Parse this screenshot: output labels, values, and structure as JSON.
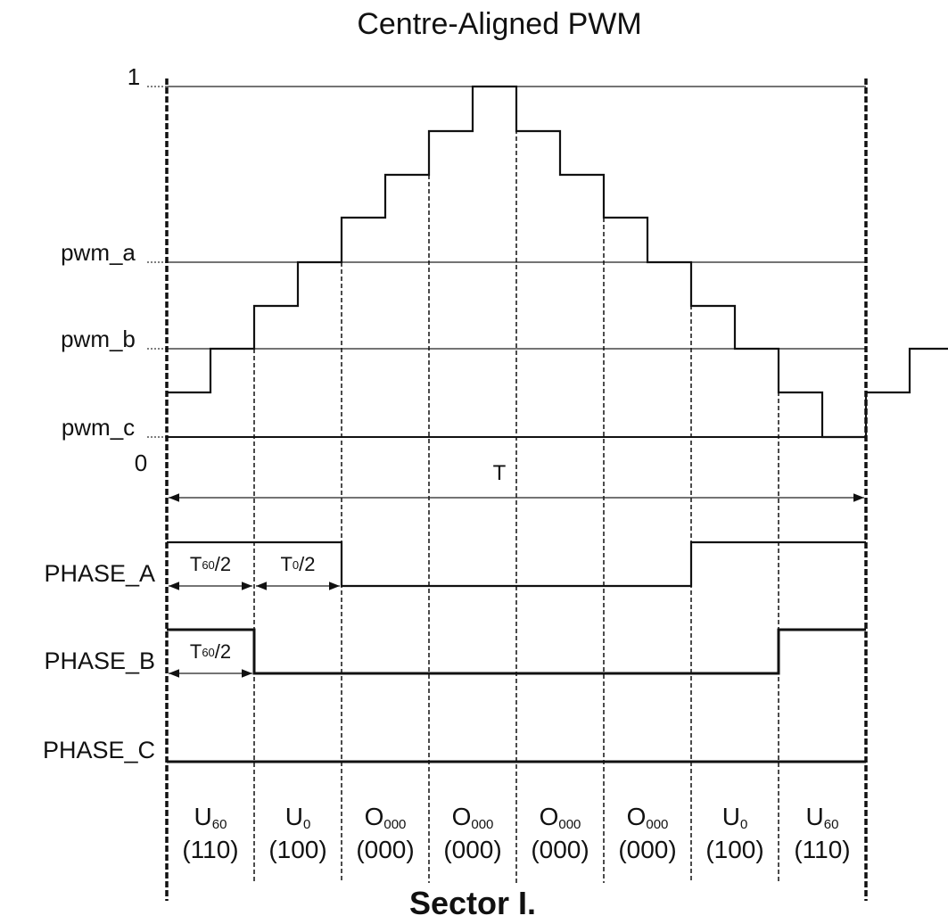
{
  "title": "Centre-Aligned PWM",
  "levels": [
    "1",
    "pwm_a",
    "pwm_b",
    "pwm_c",
    "0"
  ],
  "period": "T",
  "phases": [
    "PHASE_A",
    "PHASE_B",
    "PHASE_C"
  ],
  "intervals": [
    {
      "main": "T",
      "sub": "60",
      "tail": "/2"
    },
    {
      "main": "T",
      "sub": "0",
      "tail": "/2"
    },
    {
      "main": "T",
      "sub": "60",
      "tail": "/2"
    }
  ],
  "cells": [
    {
      "main": "U",
      "sub": "60",
      "code": "(110)"
    },
    {
      "main": "U",
      "sub": "0",
      "code": "(100)"
    },
    {
      "main": "O",
      "sub": "000",
      "code": "(000)"
    },
    {
      "main": "O",
      "sub": "000",
      "code": "(000)"
    },
    {
      "main": "O",
      "sub": "000",
      "code": "(000)"
    },
    {
      "main": "O",
      "sub": "000",
      "code": "(000)"
    },
    {
      "main": "U",
      "sub": "0",
      "code": "(100)"
    },
    {
      "main": "U",
      "sub": "60",
      "code": "(110)"
    }
  ],
  "sector": "Sector I."
}
